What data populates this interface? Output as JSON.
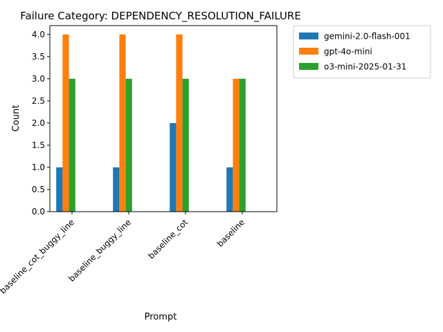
{
  "chart_data": {
    "type": "bar",
    "title": "Failure Category: DEPENDENCY_RESOLUTION_FAILURE",
    "xlabel": "Prompt",
    "ylabel": "Count",
    "categories": [
      "baseline_cot_buggy_line",
      "baseline_buggy_line",
      "baseline_cot",
      "baseline"
    ],
    "series": [
      {
        "name": "gemini-2.0-flash-001",
        "color": "#1f77b4",
        "values": [
          1,
          1,
          2,
          1
        ]
      },
      {
        "name": "gpt-4o-mini",
        "color": "#ff7f0e",
        "values": [
          4,
          4,
          4,
          3
        ]
      },
      {
        "name": "o3-mini-2025-01-31",
        "color": "#2ca02c",
        "values": [
          3,
          3,
          3,
          3
        ]
      }
    ],
    "ylim": [
      0,
      4.2
    ],
    "yticks": [
      "0.0",
      "0.5",
      "1.0",
      "1.5",
      "2.0",
      "2.5",
      "3.0",
      "3.5",
      "4.0"
    ],
    "ytick_values": [
      0,
      0.5,
      1,
      1.5,
      2,
      2.5,
      3,
      3.5,
      4
    ],
    "legend_position": "upper right, outside plot",
    "grid": false
  }
}
